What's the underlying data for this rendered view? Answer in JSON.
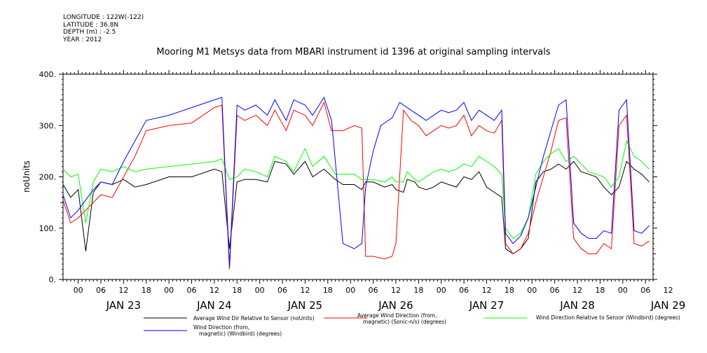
{
  "header": {
    "longitude": "LONGITUDE : 122W(-122)",
    "latitude": "LATITUDE : 36.8N",
    "depth": "DEPTH (m) : -2.5",
    "year": "YEAR : 2012"
  },
  "chart_data": {
    "type": "line",
    "title": "Mooring M1 Metsys data from MBARI instrument id 1396 at original sampling intervals",
    "ylabel": "noUnits",
    "xlabel": "",
    "ylim": [
      0,
      400
    ],
    "yticks": [
      "0.",
      "100.",
      "200.",
      "300.",
      "400."
    ],
    "xlim_hours": [
      -4,
      152
    ],
    "x_hour_ticks": [
      "00",
      "06",
      "12",
      "18",
      "00",
      "06",
      "12",
      "18",
      "00",
      "06",
      "12",
      "18",
      "00",
      "06",
      "12",
      "18",
      "00",
      "06",
      "12",
      "18",
      "00",
      "06",
      "12",
      "18",
      "00",
      "06",
      "12"
    ],
    "x_day_labels": [
      "JAN 23",
      "JAN 24",
      "JAN 25",
      "JAN 26",
      "JAN 27",
      "JAN 28",
      "JAN 29"
    ],
    "grid": false,
    "legend_placement": "bottom",
    "series": [
      {
        "name": "Average Wind Dir Relative to Sensor (noUnits)",
        "color": "#000000",
        "points": [
          [
            -4,
            185
          ],
          [
            -2,
            160
          ],
          [
            0,
            175
          ],
          [
            2,
            55
          ],
          [
            4,
            170
          ],
          [
            6,
            190
          ],
          [
            9,
            185
          ],
          [
            12,
            195
          ],
          [
            15,
            180
          ],
          [
            18,
            185
          ],
          [
            24,
            200
          ],
          [
            30,
            200
          ],
          [
            36,
            215
          ],
          [
            38,
            210
          ],
          [
            40,
            60
          ],
          [
            42,
            190
          ],
          [
            44,
            195
          ],
          [
            47,
            195
          ],
          [
            50,
            190
          ],
          [
            52,
            230
          ],
          [
            55,
            225
          ],
          [
            57,
            205
          ],
          [
            60,
            230
          ],
          [
            62,
            200
          ],
          [
            65,
            215
          ],
          [
            68,
            195
          ],
          [
            70,
            185
          ],
          [
            73,
            185
          ],
          [
            75,
            175
          ],
          [
            76,
            190
          ],
          [
            78,
            190
          ],
          [
            81,
            180
          ],
          [
            83,
            185
          ],
          [
            84,
            175
          ],
          [
            86,
            170
          ],
          [
            87,
            195
          ],
          [
            89,
            190
          ],
          [
            90,
            180
          ],
          [
            92,
            175
          ],
          [
            94,
            180
          ],
          [
            96,
            190
          ],
          [
            98,
            185
          ],
          [
            100,
            180
          ],
          [
            102,
            200
          ],
          [
            104,
            195
          ],
          [
            106,
            210
          ],
          [
            108,
            180
          ],
          [
            110,
            170
          ],
          [
            112,
            160
          ],
          [
            113,
            60
          ],
          [
            115,
            50
          ],
          [
            117,
            60
          ],
          [
            119,
            80
          ],
          [
            121,
            190
          ],
          [
            123,
            210
          ],
          [
            125,
            215
          ],
          [
            127,
            225
          ],
          [
            129,
            215
          ],
          [
            131,
            230
          ],
          [
            133,
            210
          ],
          [
            135,
            205
          ],
          [
            137,
            200
          ],
          [
            139,
            180
          ],
          [
            141,
            165
          ],
          [
            143,
            180
          ],
          [
            145,
            230
          ],
          [
            147,
            215
          ],
          [
            149,
            205
          ],
          [
            151,
            190
          ]
        ]
      },
      {
        "name": "Average Wind Direction (from, magnetic) (Sonic-n/s) (degrees)",
        "color": "#ff0000",
        "points": [
          [
            -4,
            155
          ],
          [
            -2,
            110
          ],
          [
            0,
            120
          ],
          [
            4,
            150
          ],
          [
            6,
            165
          ],
          [
            9,
            160
          ],
          [
            12,
            200
          ],
          [
            15,
            240
          ],
          [
            18,
            290
          ],
          [
            24,
            300
          ],
          [
            30,
            305
          ],
          [
            36,
            335
          ],
          [
            38,
            340
          ],
          [
            40,
            20
          ],
          [
            42,
            320
          ],
          [
            44,
            310
          ],
          [
            47,
            320
          ],
          [
            50,
            300
          ],
          [
            52,
            330
          ],
          [
            55,
            290
          ],
          [
            57,
            330
          ],
          [
            60,
            320
          ],
          [
            62,
            300
          ],
          [
            65,
            345
          ],
          [
            67,
            290
          ],
          [
            70,
            290
          ],
          [
            73,
            300
          ],
          [
            75,
            295
          ],
          [
            76,
            45
          ],
          [
            78,
            45
          ],
          [
            81,
            40
          ],
          [
            83,
            45
          ],
          [
            84,
            70
          ],
          [
            86,
            330
          ],
          [
            88,
            310
          ],
          [
            90,
            300
          ],
          [
            92,
            280
          ],
          [
            94,
            290
          ],
          [
            96,
            300
          ],
          [
            98,
            295
          ],
          [
            100,
            300
          ],
          [
            102,
            320
          ],
          [
            104,
            280
          ],
          [
            106,
            300
          ],
          [
            108,
            290
          ],
          [
            110,
            285
          ],
          [
            112,
            310
          ],
          [
            113,
            70
          ],
          [
            115,
            50
          ],
          [
            117,
            60
          ],
          [
            119,
            90
          ],
          [
            121,
            150
          ],
          [
            123,
            200
          ],
          [
            125,
            250
          ],
          [
            127,
            310
          ],
          [
            129,
            315
          ],
          [
            131,
            80
          ],
          [
            133,
            60
          ],
          [
            135,
            50
          ],
          [
            137,
            50
          ],
          [
            139,
            70
          ],
          [
            141,
            60
          ],
          [
            143,
            300
          ],
          [
            145,
            320
          ],
          [
            147,
            70
          ],
          [
            149,
            65
          ],
          [
            151,
            75
          ]
        ]
      },
      {
        "name": "Wind Direction Relative to Sensor (Windbird) (degrees)",
        "color": "#00ff00",
        "points": [
          [
            -4,
            215
          ],
          [
            -2,
            200
          ],
          [
            0,
            205
          ],
          [
            2,
            110
          ],
          [
            4,
            190
          ],
          [
            6,
            215
          ],
          [
            9,
            210
          ],
          [
            12,
            220
          ],
          [
            15,
            210
          ],
          [
            18,
            215
          ],
          [
            24,
            220
          ],
          [
            30,
            225
          ],
          [
            36,
            230
          ],
          [
            38,
            235
          ],
          [
            40,
            195
          ],
          [
            42,
            200
          ],
          [
            44,
            215
          ],
          [
            47,
            210
          ],
          [
            50,
            200
          ],
          [
            52,
            240
          ],
          [
            55,
            230
          ],
          [
            57,
            210
          ],
          [
            60,
            255
          ],
          [
            62,
            220
          ],
          [
            65,
            240
          ],
          [
            68,
            205
          ],
          [
            70,
            205
          ],
          [
            73,
            205
          ],
          [
            75,
            195
          ],
          [
            76,
            195
          ],
          [
            78,
            195
          ],
          [
            81,
            190
          ],
          [
            83,
            200
          ],
          [
            84,
            190
          ],
          [
            86,
            190
          ],
          [
            87,
            210
          ],
          [
            89,
            195
          ],
          [
            90,
            190
          ],
          [
            92,
            200
          ],
          [
            94,
            210
          ],
          [
            96,
            215
          ],
          [
            98,
            210
          ],
          [
            100,
            215
          ],
          [
            102,
            225
          ],
          [
            104,
            220
          ],
          [
            106,
            240
          ],
          [
            108,
            230
          ],
          [
            110,
            220
          ],
          [
            112,
            205
          ],
          [
            113,
            100
          ],
          [
            115,
            80
          ],
          [
            117,
            90
          ],
          [
            119,
            120
          ],
          [
            121,
            205
          ],
          [
            123,
            230
          ],
          [
            125,
            245
          ],
          [
            127,
            255
          ],
          [
            129,
            230
          ],
          [
            131,
            240
          ],
          [
            133,
            225
          ],
          [
            135,
            210
          ],
          [
            137,
            205
          ],
          [
            139,
            200
          ],
          [
            141,
            180
          ],
          [
            143,
            200
          ],
          [
            145,
            270
          ],
          [
            147,
            240
          ],
          [
            149,
            230
          ],
          [
            151,
            215
          ]
        ]
      },
      {
        "name": "Wind Direction (from, magnetic) (Windbird) (degrees)",
        "color": "#0000ff",
        "points": [
          [
            -4,
            165
          ],
          [
            -2,
            120
          ],
          [
            0,
            135
          ],
          [
            4,
            175
          ],
          [
            6,
            190
          ],
          [
            9,
            185
          ],
          [
            12,
            230
          ],
          [
            15,
            270
          ],
          [
            18,
            310
          ],
          [
            24,
            320
          ],
          [
            30,
            335
          ],
          [
            36,
            350
          ],
          [
            38,
            355
          ],
          [
            40,
            25
          ],
          [
            42,
            340
          ],
          [
            44,
            330
          ],
          [
            47,
            340
          ],
          [
            50,
            320
          ],
          [
            52,
            350
          ],
          [
            55,
            310
          ],
          [
            57,
            350
          ],
          [
            60,
            340
          ],
          [
            62,
            320
          ],
          [
            65,
            355
          ],
          [
            67,
            310
          ],
          [
            70,
            70
          ],
          [
            73,
            60
          ],
          [
            75,
            70
          ],
          [
            76,
            180
          ],
          [
            78,
            250
          ],
          [
            80,
            300
          ],
          [
            81,
            305
          ],
          [
            83,
            315
          ],
          [
            85,
            345
          ],
          [
            88,
            330
          ],
          [
            90,
            320
          ],
          [
            92,
            310
          ],
          [
            94,
            320
          ],
          [
            96,
            330
          ],
          [
            98,
            325
          ],
          [
            100,
            330
          ],
          [
            102,
            345
          ],
          [
            104,
            310
          ],
          [
            106,
            330
          ],
          [
            108,
            320
          ],
          [
            110,
            310
          ],
          [
            112,
            330
          ],
          [
            113,
            90
          ],
          [
            115,
            70
          ],
          [
            117,
            85
          ],
          [
            119,
            120
          ],
          [
            121,
            180
          ],
          [
            123,
            240
          ],
          [
            125,
            290
          ],
          [
            127,
            340
          ],
          [
            129,
            350
          ],
          [
            131,
            110
          ],
          [
            133,
            90
          ],
          [
            135,
            80
          ],
          [
            137,
            80
          ],
          [
            139,
            95
          ],
          [
            141,
            90
          ],
          [
            143,
            330
          ],
          [
            145,
            350
          ],
          [
            147,
            95
          ],
          [
            149,
            90
          ],
          [
            151,
            105
          ]
        ]
      }
    ]
  }
}
